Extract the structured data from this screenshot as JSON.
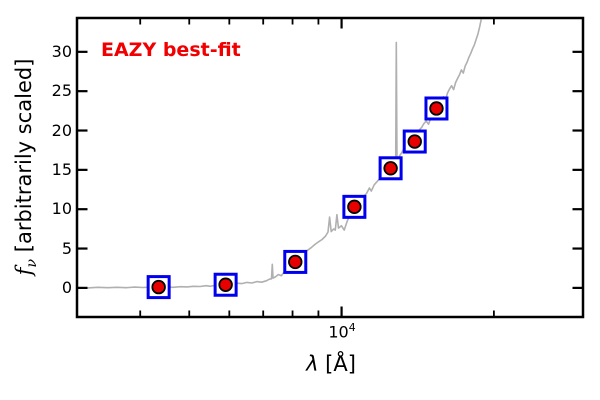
{
  "figure": {
    "background": "#ffffff",
    "annotation": {
      "text": "EAZY best-fit",
      "color": "#f00000"
    },
    "xlabel": {
      "lambda": "λ",
      "rest": " [Å]"
    },
    "ylabel": {
      "f": "f",
      "sub": "ν",
      "rest": " [arbitrarily scaled]"
    },
    "x_tick_label": {
      "base": "10",
      "exp": "4"
    }
  },
  "chart_data": {
    "type": "line",
    "title": "",
    "annotation": "EAZY best-fit",
    "xlabel": "λ [Å]",
    "ylabel": "f_ν [arbitrarily scaled]",
    "xscale": "log",
    "yscale": "linear",
    "xlim": [
      3000,
      30000
    ],
    "ylim": [
      -3.7,
      34.3
    ],
    "grid": false,
    "legend_position": "none",
    "x_major_ticks": [
      10000
    ],
    "x_minor_ticks": [
      4000,
      5000,
      6000,
      7000,
      8000,
      9000,
      20000
    ],
    "y_major_ticks": [
      0,
      5,
      10,
      15,
      20,
      25,
      30
    ],
    "axis_color": "#000000",
    "series": [
      {
        "name": "eazy-best-fit-model-spectrum",
        "type": "line",
        "color": "#b0b0b0",
        "line_width": 1.6,
        "points": [
          [
            3000,
            0.05
          ],
          [
            3150,
            0.0
          ],
          [
            3300,
            0.08
          ],
          [
            3450,
            0.02
          ],
          [
            3600,
            0.08
          ],
          [
            3750,
            0.03
          ],
          [
            3900,
            0.1
          ],
          [
            4050,
            0.05
          ],
          [
            4200,
            0.1
          ],
          [
            4350,
            0.08
          ],
          [
            4500,
            0.12
          ],
          [
            4650,
            0.08
          ],
          [
            4800,
            0.15
          ],
          [
            4950,
            0.12
          ],
          [
            5100,
            0.2
          ],
          [
            5250,
            0.18
          ],
          [
            5400,
            0.28
          ],
          [
            5500,
            0.2
          ],
          [
            5600,
            0.3
          ],
          [
            5750,
            0.35
          ],
          [
            5900,
            0.45
          ],
          [
            6050,
            0.5
          ],
          [
            6200,
            0.6
          ],
          [
            6350,
            0.55
          ],
          [
            6500,
            0.7
          ],
          [
            6650,
            0.62
          ],
          [
            6800,
            0.8
          ],
          [
            6950,
            0.72
          ],
          [
            7100,
            0.9
          ],
          [
            7200,
            1.1
          ],
          [
            7270,
            1.15
          ],
          [
            7295,
            3.0
          ],
          [
            7320,
            1.25
          ],
          [
            7400,
            1.4
          ],
          [
            7500,
            1.7
          ],
          [
            7600,
            1.55
          ],
          [
            7700,
            2.0
          ],
          [
            7800,
            2.35
          ],
          [
            7900,
            2.7
          ],
          [
            8000,
            3.0
          ],
          [
            8100,
            3.4
          ],
          [
            8250,
            3.9
          ],
          [
            8400,
            4.35
          ],
          [
            8550,
            4.75
          ],
          [
            8700,
            5.1
          ],
          [
            8850,
            5.5
          ],
          [
            9000,
            5.85
          ],
          [
            9150,
            6.15
          ],
          [
            9300,
            6.6
          ],
          [
            9400,
            7.1
          ],
          [
            9470,
            9.0
          ],
          [
            9540,
            7.15
          ],
          [
            9650,
            7.5
          ],
          [
            9720,
            7.35
          ],
          [
            9790,
            9.3
          ],
          [
            9860,
            7.6
          ],
          [
            9990,
            7.9
          ],
          [
            10120,
            7.35
          ],
          [
            10250,
            8.4
          ],
          [
            10400,
            9.4
          ],
          [
            10600,
            10.4
          ],
          [
            10750,
            10.9
          ],
          [
            10900,
            11.3
          ],
          [
            11050,
            11.6
          ],
          [
            11200,
            12.0
          ],
          [
            11350,
            12.7
          ],
          [
            11450,
            12.3
          ],
          [
            11600,
            13.1
          ],
          [
            11750,
            13.5
          ],
          [
            11900,
            13.9
          ],
          [
            12050,
            14.3
          ],
          [
            12200,
            14.7
          ],
          [
            12350,
            15.0
          ],
          [
            12500,
            15.3
          ],
          [
            12650,
            15.7
          ],
          [
            12790,
            16.0
          ],
          [
            12830,
            31.2
          ],
          [
            12870,
            16.2
          ],
          [
            13000,
            16.7
          ],
          [
            13150,
            17.2
          ],
          [
            13300,
            17.8
          ],
          [
            13450,
            18.1
          ],
          [
            13600,
            18.6
          ],
          [
            13750,
            19.1
          ],
          [
            13950,
            18.9
          ],
          [
            14100,
            19.5
          ],
          [
            14250,
            20.1
          ],
          [
            14400,
            20.4
          ],
          [
            14550,
            20.9
          ],
          [
            14700,
            21.2
          ],
          [
            14850,
            20.8
          ],
          [
            15000,
            21.5
          ],
          [
            15150,
            21.9
          ],
          [
            15300,
            22.4
          ],
          [
            15450,
            22.9
          ],
          [
            15600,
            23.3
          ],
          [
            15750,
            23.8
          ],
          [
            15900,
            24.3
          ],
          [
            16050,
            23.9
          ],
          [
            16200,
            24.8
          ],
          [
            16350,
            25.3
          ],
          [
            16500,
            25.7
          ],
          [
            16650,
            25.2
          ],
          [
            16800,
            26.1
          ],
          [
            16950,
            26.6
          ],
          [
            17100,
            27.1
          ],
          [
            17250,
            27.7
          ],
          [
            17400,
            27.3
          ],
          [
            17550,
            28.2
          ],
          [
            17700,
            28.7
          ],
          [
            17850,
            29.3
          ],
          [
            18000,
            29.8
          ],
          [
            18150,
            30.4
          ],
          [
            18300,
            30.9
          ],
          [
            18450,
            31.6
          ],
          [
            18600,
            32.3
          ],
          [
            18750,
            33.2
          ],
          [
            18900,
            34.3
          ]
        ]
      },
      {
        "name": "photometric-data-points",
        "type": "scatter",
        "marker": "open-square-with-filled-circle",
        "square_color": "#0000ee",
        "square_fill": "#ffffff",
        "circle_color": "#e80000",
        "circle_edge_color": "#000000",
        "points": [
          [
            4350,
            0.1
          ],
          [
            5900,
            0.4
          ],
          [
            8100,
            3.3
          ],
          [
            10600,
            10.3
          ],
          [
            12500,
            15.2
          ],
          [
            13950,
            18.6
          ],
          [
            15400,
            22.8
          ]
        ]
      }
    ]
  }
}
